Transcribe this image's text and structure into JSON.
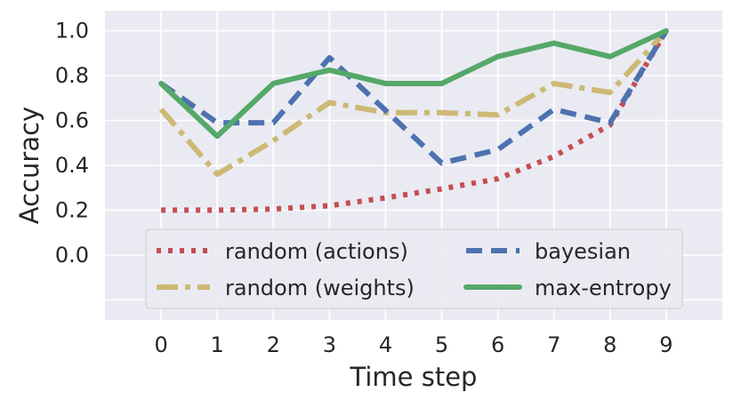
{
  "chart_data": {
    "type": "line",
    "title": "",
    "xlabel": "Time step",
    "ylabel": "Accuracy",
    "x": [
      0,
      1,
      2,
      3,
      4,
      5,
      6,
      7,
      8,
      9
    ],
    "x_ticks": [
      "0",
      "1",
      "2",
      "3",
      "4",
      "5",
      "6",
      "7",
      "8",
      "9"
    ],
    "y_ticks": [
      "0.0",
      "0.2",
      "0.4",
      "0.6",
      "0.8",
      "1.0"
    ],
    "xlim": [
      -1,
      10
    ],
    "ylim": [
      -0.29,
      1.09
    ],
    "grid": true,
    "legend_position": "lower-center",
    "legend_columns": 2,
    "series": [
      {
        "name": "random (actions)",
        "style": "dotted",
        "color": "#c44e52",
        "values": [
          0.2,
          0.2,
          0.205,
          0.22,
          0.255,
          0.295,
          0.34,
          0.44,
          0.58,
          1.0
        ]
      },
      {
        "name": "random (weights)",
        "style": "dashdot",
        "color": "#ccb974",
        "values": [
          0.65,
          0.36,
          0.51,
          0.68,
          0.635,
          0.635,
          0.625,
          0.765,
          0.725,
          1.0
        ]
      },
      {
        "name": "bayesian",
        "style": "dashed",
        "color": "#4c72b0",
        "values": [
          0.765,
          0.59,
          0.59,
          0.88,
          0.645,
          0.41,
          0.47,
          0.65,
          0.59,
          1.0
        ]
      },
      {
        "name": "max-entropy",
        "style": "solid",
        "color": "#55a868",
        "values": [
          0.765,
          0.53,
          0.765,
          0.825,
          0.765,
          0.765,
          0.885,
          0.945,
          0.885,
          1.0
        ]
      }
    ]
  }
}
